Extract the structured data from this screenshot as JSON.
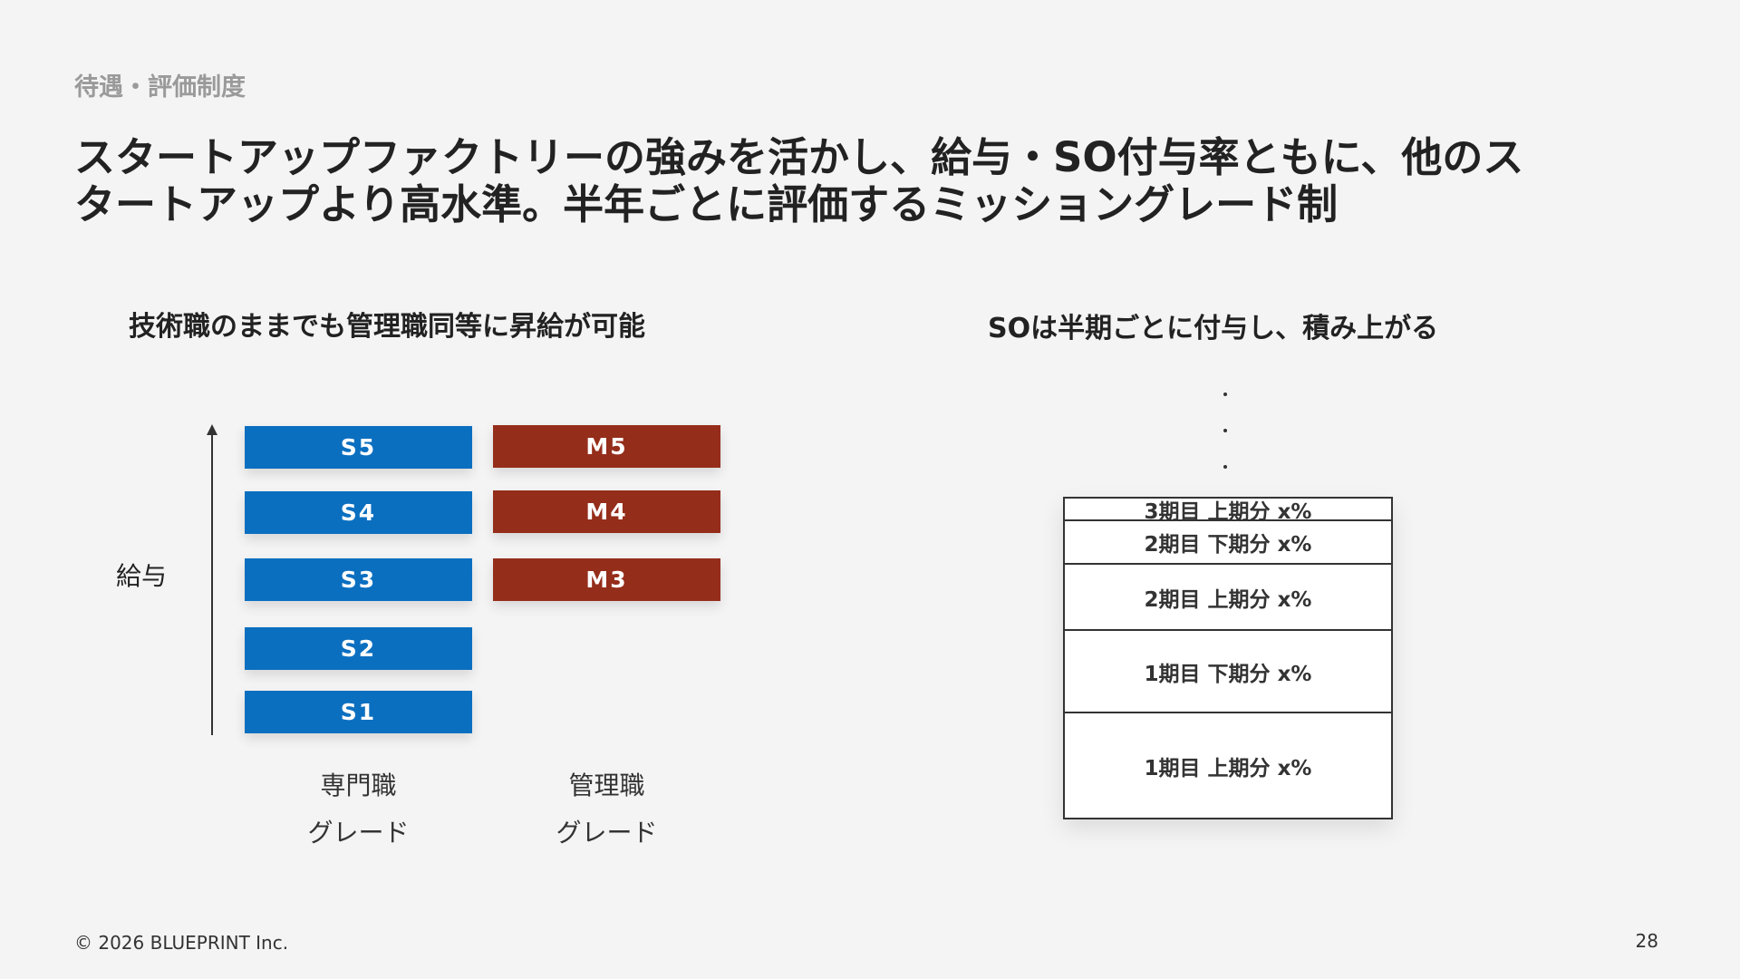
{
  "section_label": "待遇・評価制度",
  "headline": {
    "line1": "スタートアップファクトリーの強みを活かし、給与・SO付与率ともに、他のス",
    "line2": "タートアップより高水準。半年ごとに評価するミッショングレード制"
  },
  "left_panel": {
    "subtitle": "技術職のままでも管理職同等に昇給が可能",
    "axis_label": "給与",
    "specialist_grades": [
      "S5",
      "S4",
      "S3",
      "S2",
      "S1"
    ],
    "manager_grades": [
      "M5",
      "M4",
      "M3"
    ],
    "specialist_caption": {
      "line1": "専門職",
      "line2": "グレード"
    },
    "manager_caption": {
      "line1": "管理職",
      "line2": "グレード"
    },
    "colors": {
      "specialist": "#0b6fc0",
      "manager": "#952d1b"
    }
  },
  "right_panel": {
    "subtitle": "SOは半期ごとに付与し、積み上がる",
    "periods": [
      "3期目 上期分 x%",
      "2期目 下期分 x%",
      "2期目 上期分 x%",
      "1期目 下期分 x%",
      "1期目 上期分 x%"
    ]
  },
  "footer": {
    "copyright": "© 2026 BLUEPRINT Inc.",
    "page_number": "28"
  }
}
